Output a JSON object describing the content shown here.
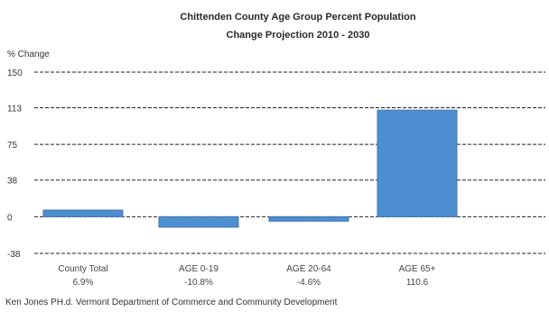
{
  "chart_data": {
    "type": "bar",
    "title": "Chittenden County Age Group Percent Population",
    "subtitle": "Change Projection 2010 - 2030",
    "ylabel": "% Change",
    "ylim": [
      -38,
      150
    ],
    "yticks": [
      "150",
      "113",
      "75",
      "38",
      "0",
      "-38"
    ],
    "ytick_values": [
      150,
      113,
      75,
      38,
      0,
      -38
    ],
    "categories": [
      "County Total",
      "AGE 0-19",
      "AGE 20-64",
      "AGE 65+"
    ],
    "value_labels": [
      "6.9%",
      "-10.8%",
      "-4.6%",
      "110.6"
    ],
    "values": [
      6.9,
      -10.8,
      -4.6,
      110.6
    ],
    "grid": true,
    "bar_color": "#4d8fd0",
    "bar_edge_color": "#3f74ad",
    "source": "Ken Jones PH.d. Vermont Department of Commerce and Community Development"
  }
}
